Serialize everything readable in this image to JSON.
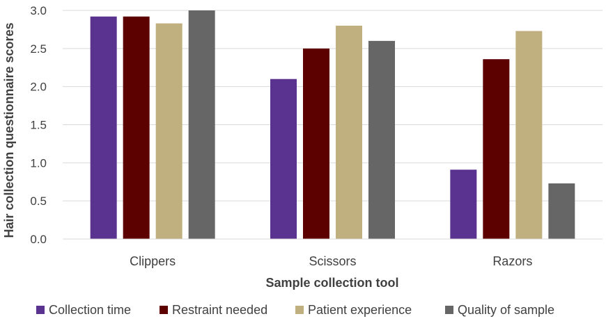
{
  "chart_data": {
    "type": "bar",
    "title": "",
    "xlabel": "Sample collection tool",
    "ylabel": "Hair collection questionnaire scores",
    "categories": [
      "Clippers",
      "Scissors",
      "Razors"
    ],
    "ylim": [
      0,
      3.0
    ],
    "yticks": [
      "0.0",
      "0.5",
      "1.0",
      "1.5",
      "2.0",
      "2.5",
      "3.0"
    ],
    "grid": true,
    "legend_position": "bottom",
    "series": [
      {
        "name": "Collection time",
        "color": "#5a3391",
        "values": [
          2.92,
          2.1,
          0.91
        ]
      },
      {
        "name": "Restraint needed",
        "color": "#5c0000",
        "values": [
          2.92,
          2.5,
          2.36
        ]
      },
      {
        "name": "Patient experience",
        "color": "#c0b080",
        "values": [
          2.83,
          2.8,
          2.73
        ]
      },
      {
        "name": "Quality of sample",
        "color": "#666666",
        "values": [
          3.0,
          2.6,
          0.73
        ]
      }
    ]
  }
}
